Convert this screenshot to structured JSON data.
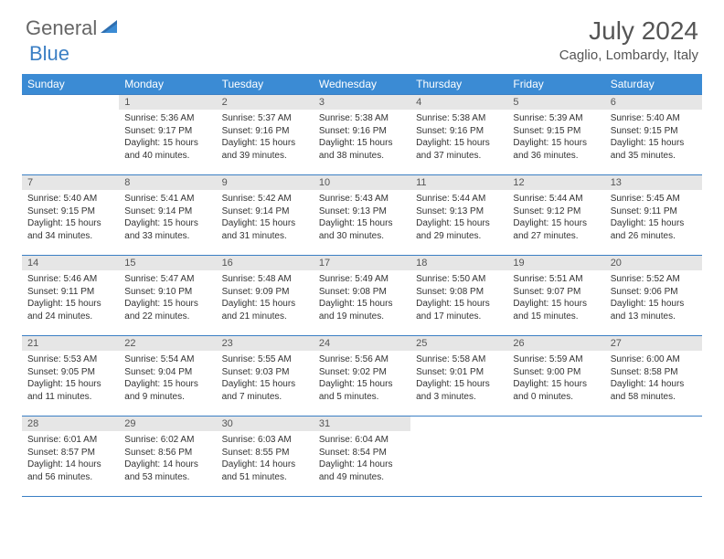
{
  "brand": {
    "part1": "General",
    "part2": "Blue"
  },
  "title": "July 2024",
  "location": "Caglio, Lombardy, Italy",
  "colors": {
    "header_bg": "#3b8bd4",
    "border": "#3b7fc4",
    "daynum_bg": "#e6e6e6",
    "text": "#333333",
    "muted": "#555555"
  },
  "weekdays": [
    "Sunday",
    "Monday",
    "Tuesday",
    "Wednesday",
    "Thursday",
    "Friday",
    "Saturday"
  ],
  "first_weekday_index": 1,
  "days": [
    {
      "n": 1,
      "sr": "5:36 AM",
      "ss": "9:17 PM",
      "dl": "15 hours and 40 minutes."
    },
    {
      "n": 2,
      "sr": "5:37 AM",
      "ss": "9:16 PM",
      "dl": "15 hours and 39 minutes."
    },
    {
      "n": 3,
      "sr": "5:38 AM",
      "ss": "9:16 PM",
      "dl": "15 hours and 38 minutes."
    },
    {
      "n": 4,
      "sr": "5:38 AM",
      "ss": "9:16 PM",
      "dl": "15 hours and 37 minutes."
    },
    {
      "n": 5,
      "sr": "5:39 AM",
      "ss": "9:15 PM",
      "dl": "15 hours and 36 minutes."
    },
    {
      "n": 6,
      "sr": "5:40 AM",
      "ss": "9:15 PM",
      "dl": "15 hours and 35 minutes."
    },
    {
      "n": 7,
      "sr": "5:40 AM",
      "ss": "9:15 PM",
      "dl": "15 hours and 34 minutes."
    },
    {
      "n": 8,
      "sr": "5:41 AM",
      "ss": "9:14 PM",
      "dl": "15 hours and 33 minutes."
    },
    {
      "n": 9,
      "sr": "5:42 AM",
      "ss": "9:14 PM",
      "dl": "15 hours and 31 minutes."
    },
    {
      "n": 10,
      "sr": "5:43 AM",
      "ss": "9:13 PM",
      "dl": "15 hours and 30 minutes."
    },
    {
      "n": 11,
      "sr": "5:44 AM",
      "ss": "9:13 PM",
      "dl": "15 hours and 29 minutes."
    },
    {
      "n": 12,
      "sr": "5:44 AM",
      "ss": "9:12 PM",
      "dl": "15 hours and 27 minutes."
    },
    {
      "n": 13,
      "sr": "5:45 AM",
      "ss": "9:11 PM",
      "dl": "15 hours and 26 minutes."
    },
    {
      "n": 14,
      "sr": "5:46 AM",
      "ss": "9:11 PM",
      "dl": "15 hours and 24 minutes."
    },
    {
      "n": 15,
      "sr": "5:47 AM",
      "ss": "9:10 PM",
      "dl": "15 hours and 22 minutes."
    },
    {
      "n": 16,
      "sr": "5:48 AM",
      "ss": "9:09 PM",
      "dl": "15 hours and 21 minutes."
    },
    {
      "n": 17,
      "sr": "5:49 AM",
      "ss": "9:08 PM",
      "dl": "15 hours and 19 minutes."
    },
    {
      "n": 18,
      "sr": "5:50 AM",
      "ss": "9:08 PM",
      "dl": "15 hours and 17 minutes."
    },
    {
      "n": 19,
      "sr": "5:51 AM",
      "ss": "9:07 PM",
      "dl": "15 hours and 15 minutes."
    },
    {
      "n": 20,
      "sr": "5:52 AM",
      "ss": "9:06 PM",
      "dl": "15 hours and 13 minutes."
    },
    {
      "n": 21,
      "sr": "5:53 AM",
      "ss": "9:05 PM",
      "dl": "15 hours and 11 minutes."
    },
    {
      "n": 22,
      "sr": "5:54 AM",
      "ss": "9:04 PM",
      "dl": "15 hours and 9 minutes."
    },
    {
      "n": 23,
      "sr": "5:55 AM",
      "ss": "9:03 PM",
      "dl": "15 hours and 7 minutes."
    },
    {
      "n": 24,
      "sr": "5:56 AM",
      "ss": "9:02 PM",
      "dl": "15 hours and 5 minutes."
    },
    {
      "n": 25,
      "sr": "5:58 AM",
      "ss": "9:01 PM",
      "dl": "15 hours and 3 minutes."
    },
    {
      "n": 26,
      "sr": "5:59 AM",
      "ss": "9:00 PM",
      "dl": "15 hours and 0 minutes."
    },
    {
      "n": 27,
      "sr": "6:00 AM",
      "ss": "8:58 PM",
      "dl": "14 hours and 58 minutes."
    },
    {
      "n": 28,
      "sr": "6:01 AM",
      "ss": "8:57 PM",
      "dl": "14 hours and 56 minutes."
    },
    {
      "n": 29,
      "sr": "6:02 AM",
      "ss": "8:56 PM",
      "dl": "14 hours and 53 minutes."
    },
    {
      "n": 30,
      "sr": "6:03 AM",
      "ss": "8:55 PM",
      "dl": "14 hours and 51 minutes."
    },
    {
      "n": 31,
      "sr": "6:04 AM",
      "ss": "8:54 PM",
      "dl": "14 hours and 49 minutes."
    }
  ],
  "labels": {
    "sunrise": "Sunrise:",
    "sunset": "Sunset:",
    "daylight": "Daylight:"
  }
}
